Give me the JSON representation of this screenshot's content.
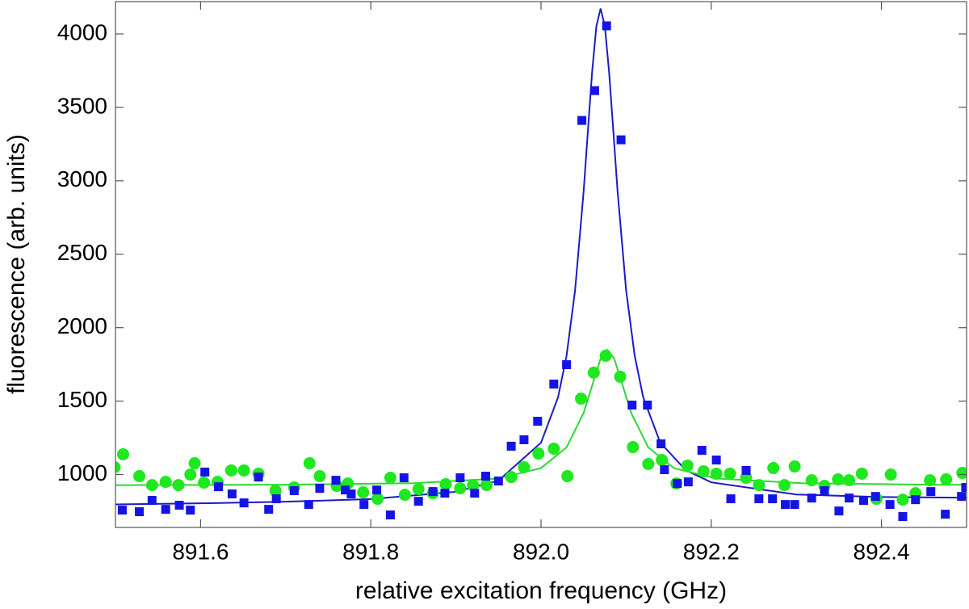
{
  "chart_data": {
    "type": "scatter",
    "xlabel": "relative excitation frequency  (GHz)",
    "ylabel": "fluorescence (arb. units)",
    "xlim": [
      891.5,
      892.5
    ],
    "ylim": [
      640,
      4220
    ],
    "xticks": [
      {
        "value": 891.6,
        "label": "891.6"
      },
      {
        "value": 891.8,
        "label": "891.8"
      },
      {
        "value": 892.0,
        "label": "892.0"
      },
      {
        "value": 892.2,
        "label": "892.2"
      },
      {
        "value": 892.4,
        "label": "892.4"
      }
    ],
    "yticks": [
      1000,
      1500,
      2000,
      2500,
      3000,
      3500,
      4000
    ],
    "series": [
      {
        "type": "line",
        "color": "#1a1ac8",
        "x": [
          891.5,
          891.6,
          891.7,
          891.8,
          891.9,
          891.95,
          892.0,
          892.02,
          892.03,
          892.04,
          892.05,
          892.055,
          892.06,
          892.065,
          892.07,
          892.075,
          892.08,
          892.085,
          892.09,
          892.1,
          892.11,
          892.12,
          892.14,
          892.17,
          892.2,
          892.3,
          892.4,
          892.5
        ],
        "values": [
          797,
          804,
          815,
          833,
          883,
          959,
          1217,
          1526,
          1809,
          2253,
          2923,
          3333,
          3739,
          4052,
          4173,
          4052,
          3740,
          3334,
          2924,
          2254,
          1810,
          1527,
          1218,
          1030,
          947,
          864,
          847,
          842
        ]
      },
      {
        "type": "line",
        "color": "#2ed82e",
        "x": [
          891.5,
          891.7,
          891.85,
          891.95,
          892.0,
          892.03,
          892.05,
          892.06,
          892.07,
          892.078,
          892.086,
          892.096,
          892.106,
          892.126,
          892.156,
          892.206,
          892.306,
          892.456,
          892.5
        ],
        "values": [
          928,
          931,
          941,
          973,
          1044,
          1185,
          1419,
          1605,
          1789,
          1850,
          1789,
          1605,
          1419,
          1185,
          1044,
          973,
          941,
          931,
          930
        ]
      },
      {
        "type": "scatter",
        "marker": "circle",
        "color": "#1ee81e",
        "x": [
          891.499,
          891.509,
          891.528,
          891.543,
          891.559,
          891.574,
          891.588,
          891.593,
          891.604,
          891.62,
          891.636,
          891.651,
          891.668,
          891.688,
          891.71,
          891.728,
          891.74,
          891.76,
          891.773,
          891.791,
          891.808,
          891.823,
          891.84,
          891.856,
          891.873,
          891.888,
          891.905,
          891.92,
          891.936,
          891.965,
          891.98,
          891.997,
          892.015,
          892.031,
          892.047,
          892.062,
          892.076,
          892.093,
          892.108,
          892.126,
          892.142,
          892.159,
          892.172,
          892.191,
          892.206,
          892.222,
          892.241,
          892.256,
          892.273,
          892.286,
          892.298,
          892.318,
          892.333,
          892.349,
          892.362,
          892.377,
          892.394,
          892.411,
          892.425,
          892.44,
          892.457,
          892.476,
          892.495
        ],
        "values": [
          1050,
          1138,
          989,
          928,
          950,
          928,
          1000,
          1077,
          945,
          950,
          1028,
          1028,
          1006,
          890,
          912,
          1077,
          989,
          923,
          939,
          879,
          835,
          978,
          862,
          901,
          873,
          934,
          906,
          928,
          928,
          983,
          1050,
          1143,
          1176,
          989,
          1517,
          1694,
          1809,
          1666,
          1187,
          1072,
          1099,
          939,
          1061,
          1022,
          1006,
          1006,
          978,
          928,
          1044,
          928,
          1055,
          961,
          923,
          967,
          961,
          1006,
          835,
          1000,
          829,
          873,
          961,
          967,
          1011
        ]
      },
      {
        "type": "scatter",
        "marker": "square",
        "color": "#1414e6",
        "x": [
          891.508,
          891.528,
          891.543,
          891.559,
          891.575,
          891.588,
          891.605,
          891.621,
          891.637,
          891.651,
          891.668,
          891.68,
          891.689,
          891.71,
          891.727,
          891.74,
          891.759,
          891.77,
          891.777,
          891.792,
          891.807,
          891.823,
          891.839,
          891.856,
          891.873,
          891.887,
          891.905,
          891.922,
          891.935,
          891.95,
          891.965,
          891.98,
          891.996,
          892.015,
          892.03,
          892.048,
          892.063,
          892.077,
          892.094,
          892.107,
          892.125,
          892.141,
          892.145,
          892.16,
          892.173,
          892.189,
          892.206,
          892.223,
          892.241,
          892.256,
          892.272,
          892.287,
          892.298,
          892.318,
          892.333,
          892.35,
          892.362,
          892.379,
          892.393,
          892.41,
          892.425,
          892.44,
          892.458,
          892.475,
          892.494,
          892.499
        ],
        "values": [
          758,
          747,
          824,
          763,
          791,
          758,
          1017,
          917,
          868,
          807,
          983,
          763,
          835,
          890,
          796,
          906,
          961,
          895,
          868,
          796,
          895,
          725,
          978,
          818,
          884,
          873,
          978,
          873,
          989,
          956,
          1193,
          1237,
          1363,
          1616,
          1748,
          3411,
          3614,
          4055,
          3279,
          1473,
          1473,
          1209,
          1033,
          939,
          950,
          1165,
          1099,
          835,
          1028,
          835,
          835,
          796,
          796,
          840,
          890,
          752,
          840,
          824,
          851,
          796,
          714,
          829,
          884,
          730,
          851,
          912
        ]
      }
    ]
  }
}
